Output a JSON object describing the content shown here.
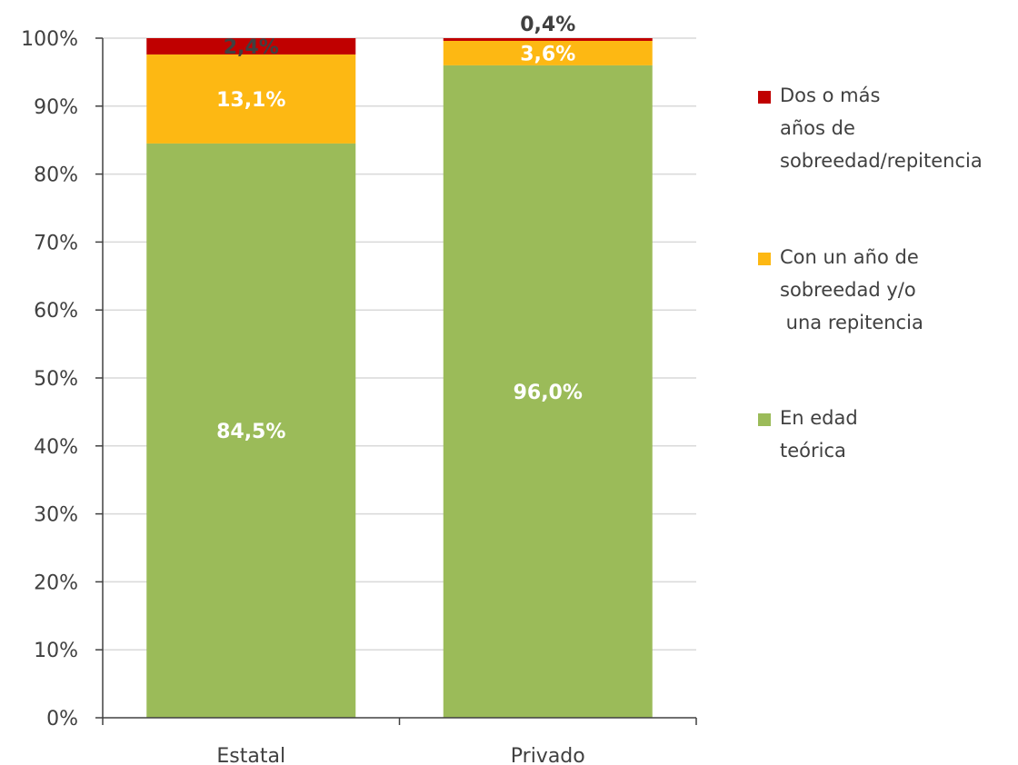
{
  "chart_data": {
    "type": "bar",
    "stacked": true,
    "categories": [
      "Estatal",
      "Privado"
    ],
    "series": [
      {
        "name": "En edad teórica",
        "values": [
          84.5,
          96.0
        ],
        "labels": [
          "84,5%",
          "96,0%"
        ],
        "color": "#9BBB59",
        "label_color": "#ffffff"
      },
      {
        "name": "Con un año de sobreedad y/o una repitencia",
        "values": [
          13.1,
          3.6
        ],
        "labels": [
          "13,1%",
          "3,6%"
        ],
        "color": "#FDB813",
        "label_color": "#ffffff"
      },
      {
        "name": "Dos o más años de sobreedad/repitencia",
        "values": [
          2.4,
          0.4
        ],
        "labels": [
          "2,4%",
          "0,4%"
        ],
        "color": "#C00000",
        "label_color": "#404040"
      }
    ],
    "yticks": [
      "0%",
      "10%",
      "20%",
      "30%",
      "40%",
      "50%",
      "60%",
      "70%",
      "80%",
      "90%",
      "100%"
    ],
    "ylim": [
      0,
      100
    ],
    "grid": true,
    "legend_position": "right",
    "title": "",
    "xlabel": "",
    "ylabel": ""
  },
  "legend": [
    {
      "color": "#C00000",
      "lines": [
        "Dos o más",
        "años de",
        "sobreedad/repitencia"
      ]
    },
    {
      "color": "#FDB813",
      "lines": [
        "Con un año de",
        "sobreedad y/o",
        " una repitencia"
      ]
    },
    {
      "color": "#9BBB59",
      "lines": [
        "En edad",
        "teórica"
      ]
    }
  ]
}
